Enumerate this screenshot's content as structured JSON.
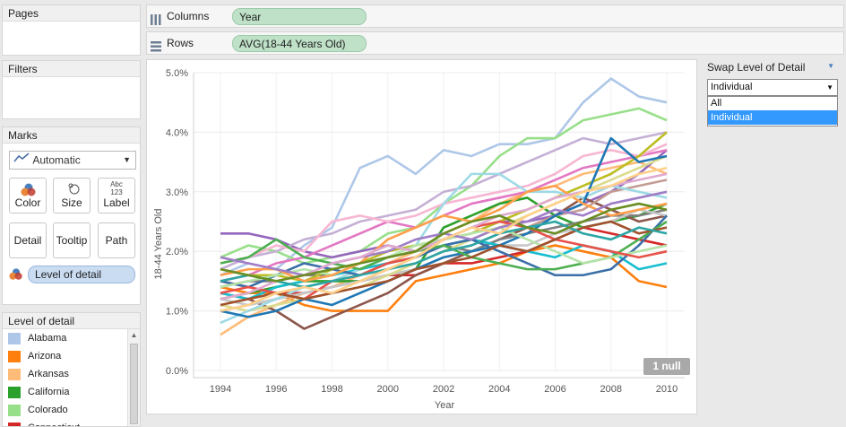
{
  "pages": {
    "title": "Pages"
  },
  "filters": {
    "title": "Filters"
  },
  "columns_shelf": {
    "label": "Columns",
    "pill": "Year"
  },
  "rows_shelf": {
    "label": "Rows",
    "pill": "AVG(18-44 Years Old)"
  },
  "marks": {
    "title": "Marks",
    "type": "Automatic",
    "buttons": {
      "color": "Color",
      "size": "Size",
      "label": "Label",
      "label_icon_text": "Abc\n123",
      "detail": "Detail",
      "tooltip": "Tooltip",
      "path": "Path"
    },
    "detail_pill": "Level of detail"
  },
  "legend": {
    "title": "Level of detail",
    "items": [
      {
        "label": "Alabama",
        "color": "#aec7e8"
      },
      {
        "label": "Arizona",
        "color": "#ff7f0e"
      },
      {
        "label": "Arkansas",
        "color": "#ffbb78"
      },
      {
        "label": "California",
        "color": "#2ca02c"
      },
      {
        "label": "Colorado",
        "color": "#98df8a"
      },
      {
        "label": "Connecticut",
        "color": "#d62728"
      }
    ]
  },
  "swap": {
    "title": "Swap Level of Detail",
    "selected": "Individual",
    "options": [
      "All",
      "Individual"
    ]
  },
  "null_badge": "1 null",
  "chart_data": {
    "type": "line",
    "xlabel": "Year",
    "ylabel": "18-44 Years Old",
    "x": [
      1994,
      1995,
      1996,
      1997,
      1998,
      1999,
      2000,
      2001,
      2002,
      2003,
      2004,
      2005,
      2006,
      2007,
      2008,
      2009,
      2010
    ],
    "x_ticks": [
      "1994",
      "1996",
      "1998",
      "2000",
      "2002",
      "2004",
      "2006",
      "2008",
      "2010"
    ],
    "y_ticks": [
      "0.0%",
      "1.0%",
      "2.0%",
      "3.0%",
      "4.0%",
      "5.0%"
    ],
    "ylim": [
      0,
      5
    ],
    "series": [
      {
        "color": "#aec7e8",
        "values": [
          1.6,
          1.8,
          1.7,
          2.1,
          2.4,
          3.4,
          3.6,
          3.3,
          3.7,
          3.6,
          3.8,
          3.8,
          3.9,
          4.5,
          4.9,
          4.6,
          4.5
        ]
      },
      {
        "color": "#ff7f0e",
        "values": [
          1.4,
          1.3,
          1.3,
          1.1,
          1.0,
          1.0,
          1.0,
          1.5,
          1.6,
          1.7,
          1.8,
          2.0,
          2.1,
          2.0,
          1.9,
          1.5,
          1.4
        ]
      },
      {
        "color": "#ffbb78",
        "values": [
          0.6,
          0.9,
          1.1,
          1.3,
          1.4,
          1.6,
          1.8,
          2.0,
          2.3,
          2.5,
          2.8,
          3.0,
          3.1,
          3.3,
          3.4,
          3.5,
          3.3
        ]
      },
      {
        "color": "#2ca02c",
        "values": [
          1.2,
          1.3,
          1.4,
          1.5,
          1.5,
          1.5,
          1.6,
          1.7,
          2.4,
          2.6,
          2.8,
          2.9,
          2.6,
          2.4,
          2.5,
          2.6,
          2.8
        ]
      },
      {
        "color": "#98df8a",
        "values": [
          1.9,
          2.1,
          2.0,
          1.8,
          1.9,
          2.0,
          2.3,
          2.4,
          2.8,
          3.1,
          3.6,
          3.9,
          3.9,
          4.2,
          4.3,
          4.4,
          4.2
        ]
      },
      {
        "color": "#d62728",
        "values": [
          1.5,
          1.4,
          1.3,
          1.3,
          1.4,
          1.5,
          1.6,
          1.6,
          1.8,
          1.8,
          1.9,
          2.0,
          2.2,
          2.4,
          2.3,
          2.2,
          2.1
        ]
      },
      {
        "color": "#9467bd",
        "values": [
          2.3,
          2.3,
          2.2,
          2.0,
          1.9,
          2.0,
          2.1,
          2.0,
          2.2,
          2.3,
          2.5,
          2.5,
          2.6,
          2.8,
          3.0,
          3.3,
          3.7
        ]
      },
      {
        "color": "#c5b0d5",
        "values": [
          1.7,
          1.9,
          2.0,
          2.2,
          2.3,
          2.5,
          2.6,
          2.7,
          3.0,
          3.1,
          3.3,
          3.5,
          3.7,
          3.9,
          3.8,
          3.9,
          4.0
        ]
      },
      {
        "color": "#8c564b",
        "values": [
          1.3,
          1.2,
          1.0,
          0.7,
          0.9,
          1.1,
          1.3,
          1.6,
          1.8,
          2.0,
          2.2,
          2.4,
          2.6,
          2.9,
          2.7,
          2.5,
          2.6
        ]
      },
      {
        "color": "#c49c94",
        "values": [
          1.0,
          1.1,
          1.2,
          1.3,
          1.4,
          1.5,
          1.7,
          1.8,
          2.0,
          2.1,
          2.3,
          2.4,
          2.6,
          2.7,
          3.0,
          3.1,
          3.2
        ]
      },
      {
        "color": "#e377c2",
        "values": [
          1.5,
          1.6,
          1.8,
          1.9,
          2.1,
          2.3,
          2.5,
          2.4,
          2.6,
          2.8,
          2.9,
          3.0,
          3.2,
          3.4,
          3.5,
          3.6,
          3.7
        ]
      },
      {
        "color": "#f7b6d2",
        "values": [
          1.8,
          1.9,
          2.1,
          2.0,
          2.5,
          2.6,
          2.5,
          2.6,
          2.8,
          2.9,
          3.0,
          3.1,
          3.3,
          3.6,
          3.7,
          3.6,
          3.8
        ]
      },
      {
        "color": "#7f7f7f",
        "values": [
          1.4,
          1.5,
          1.5,
          1.6,
          1.6,
          1.7,
          1.8,
          1.9,
          2.1,
          2.0,
          2.2,
          2.3,
          2.4,
          2.5,
          2.6,
          2.6,
          2.7
        ]
      },
      {
        "color": "#c7c7c7",
        "values": [
          1.2,
          1.1,
          1.2,
          1.3,
          1.4,
          1.5,
          1.6,
          1.7,
          1.9,
          2.0,
          2.1,
          2.1,
          2.3,
          2.4,
          2.5,
          2.7,
          2.6
        ]
      },
      {
        "color": "#bcbd22",
        "values": [
          1.7,
          1.6,
          1.6,
          1.5,
          1.7,
          1.8,
          2.0,
          2.1,
          2.2,
          2.3,
          2.5,
          2.7,
          2.9,
          3.1,
          3.3,
          3.6,
          4.0
        ]
      },
      {
        "color": "#dbdb8d",
        "values": [
          1.1,
          1.0,
          1.1,
          1.2,
          1.3,
          1.4,
          1.6,
          1.8,
          2.0,
          2.2,
          2.4,
          2.6,
          2.8,
          3.0,
          3.2,
          3.4,
          3.6
        ]
      },
      {
        "color": "#17becf",
        "values": [
          1.3,
          1.2,
          1.4,
          1.5,
          1.6,
          1.7,
          1.8,
          1.9,
          2.1,
          2.2,
          2.1,
          2.0,
          1.9,
          2.1,
          2.0,
          1.7,
          1.8
        ]
      },
      {
        "color": "#9edae5",
        "values": [
          0.8,
          1.0,
          1.2,
          1.4,
          1.5,
          1.7,
          1.9,
          2.1,
          2.8,
          3.3,
          3.3,
          3.0,
          3.0,
          2.9,
          3.1,
          3.0,
          2.9
        ]
      },
      {
        "color": "#1f77b4",
        "values": [
          1.0,
          0.9,
          1.0,
          1.2,
          1.1,
          1.3,
          1.5,
          1.7,
          1.9,
          2.0,
          2.1,
          2.3,
          2.6,
          2.8,
          3.9,
          3.5,
          3.6
        ]
      },
      {
        "color": "#3a6fa8",
        "values": [
          1.5,
          1.4,
          1.6,
          1.8,
          1.7,
          1.6,
          1.8,
          1.9,
          2.1,
          2.2,
          2.0,
          1.8,
          1.6,
          1.6,
          1.7,
          2.1,
          2.6
        ]
      },
      {
        "color": "#4caf50",
        "values": [
          1.8,
          1.9,
          2.2,
          1.9,
          1.8,
          1.7,
          1.9,
          2.0,
          2.1,
          1.9,
          1.8,
          1.7,
          1.7,
          1.8,
          1.9,
          2.2,
          2.5
        ]
      },
      {
        "color": "#b5e3a8",
        "values": [
          1.4,
          1.5,
          1.6,
          1.7,
          1.6,
          1.8,
          1.9,
          2.1,
          2.2,
          2.3,
          2.4,
          2.2,
          2.0,
          1.8,
          1.9,
          2.0,
          2.1
        ]
      },
      {
        "color": "#ff9f4a",
        "values": [
          1.6,
          1.7,
          1.7,
          1.5,
          1.6,
          1.8,
          2.2,
          2.4,
          2.6,
          2.5,
          2.7,
          3.0,
          3.1,
          2.8,
          2.6,
          2.7,
          2.8
        ]
      },
      {
        "color": "#e8524a",
        "values": [
          1.3,
          1.4,
          1.3,
          1.2,
          1.5,
          1.6,
          1.8,
          1.9,
          2.2,
          2.4,
          2.5,
          2.4,
          2.2,
          2.1,
          2.0,
          1.9,
          2.0
        ]
      },
      {
        "color": "#a07ec7",
        "values": [
          1.9,
          1.8,
          1.7,
          1.6,
          1.8,
          1.9,
          2.0,
          2.2,
          2.3,
          2.2,
          2.4,
          2.5,
          2.7,
          2.6,
          2.8,
          2.9,
          3.0
        ]
      },
      {
        "color": "#a0522d",
        "values": [
          1.1,
          1.2,
          1.3,
          1.2,
          1.3,
          1.4,
          1.5,
          1.7,
          1.8,
          1.9,
          2.1,
          2.0,
          2.2,
          2.4,
          2.5,
          2.3,
          2.4
        ]
      },
      {
        "color": "#2ca6a4",
        "values": [
          1.5,
          1.6,
          1.5,
          1.4,
          1.5,
          1.6,
          1.7,
          1.8,
          2.0,
          2.1,
          2.3,
          2.4,
          2.5,
          2.3,
          2.2,
          2.4,
          2.3
        ]
      },
      {
        "color": "#e0a9cf",
        "values": [
          1.2,
          1.3,
          1.5,
          1.6,
          1.8,
          1.9,
          2.1,
          2.0,
          2.2,
          2.4,
          2.6,
          2.7,
          2.9,
          3.0,
          3.1,
          3.2,
          3.3
        ]
      },
      {
        "color": "#6b8e23",
        "values": [
          1.7,
          1.6,
          1.5,
          1.6,
          1.7,
          1.8,
          1.9,
          2.0,
          2.3,
          2.5,
          2.6,
          2.4,
          2.3,
          2.5,
          2.7,
          2.8,
          2.7
        ]
      },
      {
        "color": "#ffd08a",
        "values": [
          1.0,
          1.1,
          1.3,
          1.4,
          1.3,
          1.5,
          1.7,
          1.9,
          2.2,
          2.4,
          2.3,
          2.6,
          2.8,
          3.0,
          3.1,
          3.3,
          3.4
        ]
      }
    ]
  }
}
